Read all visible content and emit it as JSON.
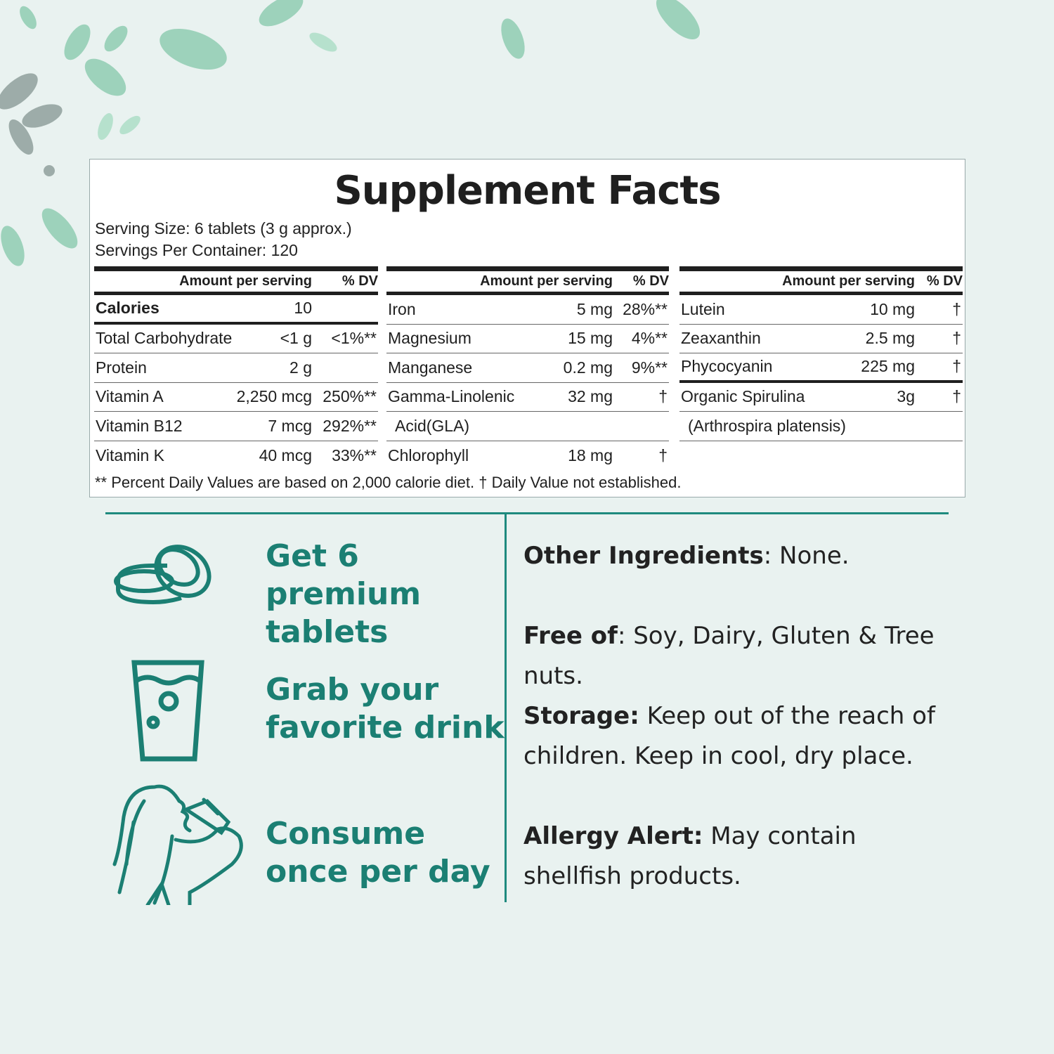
{
  "label": {
    "title": "Supplement Facts",
    "serving_size": "Serving Size: 6 tablets (3 g approx.)",
    "servings_per_container": "Servings Per Container: 120",
    "columns": [
      {
        "header_amount": "Amount per serving",
        "header_dv": "% DV",
        "rows": [
          {
            "name": "Calories",
            "amount": "10",
            "dv": ""
          },
          {
            "name": "Total Carbohydrate",
            "amount": "<1 g",
            "dv": "<1%**"
          },
          {
            "name": "Protein",
            "amount": "2 g",
            "dv": ""
          },
          {
            "name": "Vitamin A",
            "amount": "2,250 mcg",
            "dv": "250%**"
          },
          {
            "name": "Vitamin B12",
            "amount": "7 mcg",
            "dv": "292%**"
          },
          {
            "name": "Vitamin K",
            "amount": "40 mcg",
            "dv": "33%**"
          }
        ]
      },
      {
        "header_amount": "Amount per serving",
        "header_dv": "% DV",
        "rows": [
          {
            "name": "Iron",
            "amount": "5 mg",
            "dv": "28%**"
          },
          {
            "name": "Magnesium",
            "amount": "15 mg",
            "dv": "4%**"
          },
          {
            "name": "Manganese",
            "amount": "0.2 mg",
            "dv": "9%**"
          },
          {
            "name": "Gamma-Linolenic",
            "amount": "32 mg",
            "dv": "†"
          },
          {
            "name": "Acid(GLA)",
            "amount": "",
            "dv": ""
          },
          {
            "name": "Chlorophyll",
            "amount": "18 mg",
            "dv": "†"
          }
        ]
      },
      {
        "header_amount": "Amount per serving",
        "header_dv": "% DV",
        "rows": [
          {
            "name": "Lutein",
            "amount": "10 mg",
            "dv": "†"
          },
          {
            "name": "Zeaxanthin",
            "amount": "2.5 mg",
            "dv": "†"
          },
          {
            "name": "Phycocyanin",
            "amount": "225 mg",
            "dv": "†"
          },
          {
            "name": "Organic Spirulina",
            "amount": "3g",
            "dv": "†"
          },
          {
            "name": "(Arthrospira platensis)",
            "amount": "",
            "dv": ""
          },
          {
            "name": "",
            "amount": "",
            "dv": ""
          }
        ]
      }
    ],
    "footnote": "** Percent Daily Values are based on 2,000 calorie diet. † Daily Value not established."
  },
  "steps": [
    {
      "icon": "tablets-icon",
      "text": "Get 6 premium tablets"
    },
    {
      "icon": "glass-of-drink-icon",
      "text": "Grab your favorite drink"
    },
    {
      "icon": "woman-drinking-icon",
      "text": "Consume once per day"
    }
  ],
  "info": [
    {
      "label": "Other Ingredients",
      "text": ": None."
    },
    {
      "label": "Free of",
      "text": ": Soy, Dairy, Gluten & Tree nuts."
    },
    {
      "label": "Storage:",
      "text": " Keep out of the reach of children. Keep in cool, dry place."
    },
    {
      "label": "Allergy Alert:",
      "text": " May contain shellfish products."
    }
  ],
  "colors": {
    "accent": "#1b7f73",
    "background": "#e9f2f0",
    "leaf": "#7cc4a6"
  }
}
